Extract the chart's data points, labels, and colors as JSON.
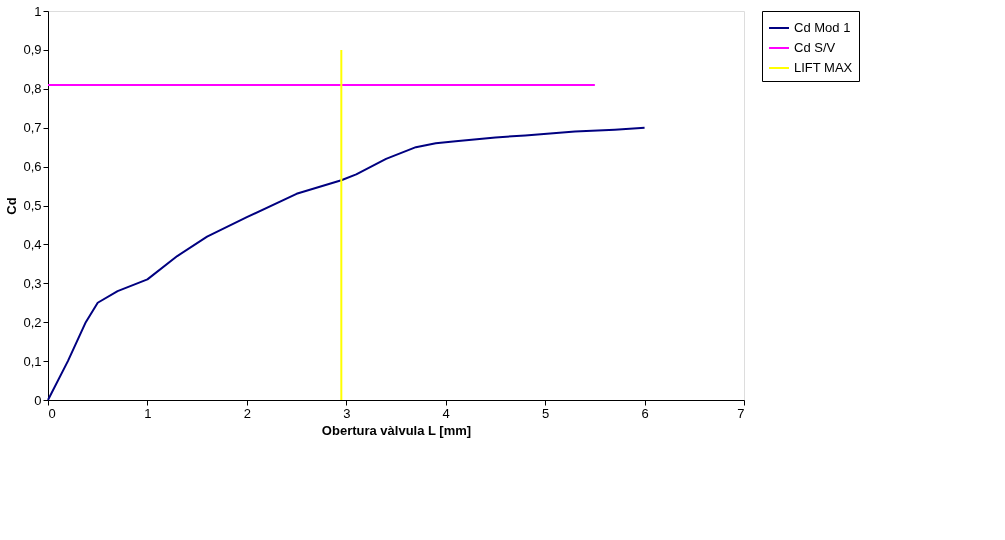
{
  "chart_data": {
    "type": "line",
    "xlabel": "Obertura vàlvula L [mm]",
    "ylabel": "Cd",
    "xlim": [
      0,
      7
    ],
    "xticks": [
      0,
      1,
      2,
      3,
      4,
      5,
      6,
      7
    ],
    "ylim": [
      0,
      1
    ],
    "yticks": [
      0,
      {
        "value": 0.1,
        "label": "0,1"
      },
      {
        "value": 0.2,
        "label": "0,2"
      },
      {
        "value": 0.3,
        "label": "0,3"
      },
      {
        "value": 0.4,
        "label": "0,4"
      },
      {
        "value": 0.5,
        "label": "0,5"
      },
      {
        "value": 0.6,
        "label": "0,6"
      },
      {
        "value": 0.7,
        "label": "0,7"
      },
      {
        "value": 0.8,
        "label": "0,8"
      },
      {
        "value": 0.9,
        "label": "0,9"
      },
      1
    ],
    "grid": false,
    "legend": "right",
    "marker": "none",
    "line_style": "solid",
    "series": [
      {
        "name": "Cd Mod 1",
        "color": "#000080",
        "x": [
          0,
          0.2,
          0.38,
          0.5,
          0.7,
          1.0,
          1.3,
          1.6,
          2.0,
          2.5,
          2.95,
          3.1,
          3.4,
          3.7,
          3.9,
          4.1,
          4.5,
          4.8,
          5.3,
          5.7,
          6.0
        ],
        "values": [
          0,
          0.1,
          0.2,
          0.25,
          0.28,
          0.31,
          0.37,
          0.42,
          0.47,
          0.53,
          0.565,
          0.58,
          0.62,
          0.65,
          0.66,
          0.665,
          0.675,
          0.68,
          0.69,
          0.695,
          0.7
        ]
      },
      {
        "name": "Cd S/V",
        "color": "#ff00ff",
        "x": [
          0,
          5.5
        ],
        "values": [
          0.81,
          0.81
        ]
      },
      {
        "name": "LIFT MAX",
        "color": "#ffff00",
        "x": [
          2.95,
          2.95
        ],
        "values": [
          0,
          0.9
        ]
      }
    ]
  }
}
